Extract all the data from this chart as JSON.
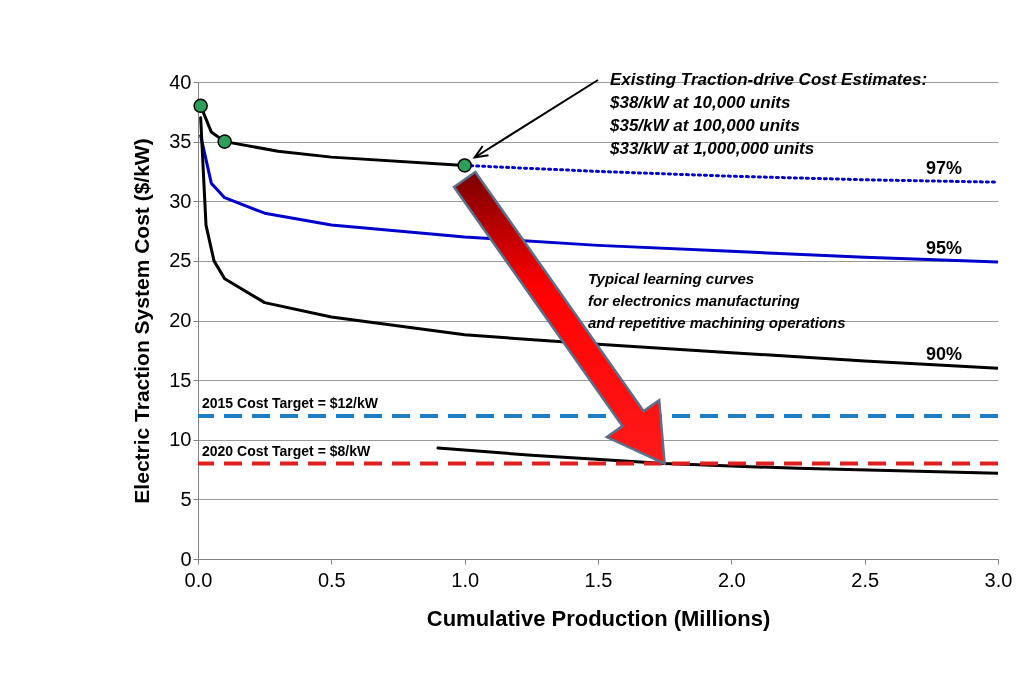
{
  "chart_data": {
    "type": "line",
    "xlabel": "Cumulative Production (Millions)",
    "ylabel": "Electric Traction System Cost ($/kW)",
    "xlim": [
      0,
      3
    ],
    "ylim": [
      0,
      40
    ],
    "xticks": [
      {
        "value": 0,
        "label": "0.0"
      },
      0.5,
      {
        "value": 1,
        "label": "1.0"
      },
      1.5,
      {
        "value": 2,
        "label": "2.0"
      },
      2.5,
      {
        "value": 3,
        "label": "3.0"
      }
    ],
    "yticks": [
      0,
      5,
      10,
      15,
      20,
      25,
      30,
      35,
      40
    ],
    "grid": "y",
    "series": [
      {
        "color": "#000000",
        "x": [
          0.01,
          0.05,
          0.1,
          0.3,
          0.5,
          1.0
        ],
        "values": [
          38,
          35.8,
          35,
          34.2,
          33.7,
          33
        ]
      },
      {
        "name": "97%",
        "color": "#0000cc",
        "line_style": "dotted",
        "x": [
          1.0,
          1.5,
          2.0,
          2.5,
          3.0
        ],
        "values": [
          33,
          32.5,
          32.1,
          31.8,
          31.6
        ]
      },
      {
        "name": "95%",
        "color": "#0000cc",
        "x": [
          0.01,
          0.05,
          0.1,
          0.25,
          0.5,
          1.0,
          1.5,
          2.0,
          2.5,
          3.0
        ],
        "values": [
          35.5,
          31.5,
          30.3,
          29,
          28,
          27,
          26.3,
          25.8,
          25.3,
          24.9
        ]
      },
      {
        "name": "90%",
        "color": "#000000",
        "x": [
          0.01,
          0.03,
          0.06,
          0.1,
          0.25,
          0.5,
          1.0,
          1.5,
          2.0,
          2.5,
          3.0
        ],
        "values": [
          37,
          28,
          25,
          23.5,
          21.5,
          20.3,
          18.8,
          18,
          17.3,
          16.6,
          16
        ]
      },
      {
        "color": "#000000",
        "x": [
          0.9,
          1.25,
          1.75,
          2.25,
          3.0
        ],
        "values": [
          9.3,
          8.7,
          8.0,
          7.6,
          7.2
        ]
      },
      {
        "type": "scatter",
        "marker": "circle",
        "color": "#2ca05a",
        "x": [
          0.01,
          0.1,
          1.0
        ],
        "values": [
          38,
          35,
          33
        ]
      }
    ],
    "ref_lines": [
      {
        "axis": "y",
        "value": 12,
        "label": "2015 Cost Target = $12/kW",
        "color": "#1f7fc4",
        "line_style": "dashed"
      },
      {
        "axis": "y",
        "value": 8,
        "label": "2020 Cost Target = $8/kW",
        "color": "#e02020",
        "line_style": "dashed"
      }
    ],
    "annotations": [
      "Existing Traction-drive Cost Estimates:\n$38/kW at 10,000 units\n$35/kW at 100,000 units\n$33/kW at 1,000,000 units",
      "Typical learning curves\nfor electronics manufacturing\nand repetitive machining operations"
    ]
  }
}
